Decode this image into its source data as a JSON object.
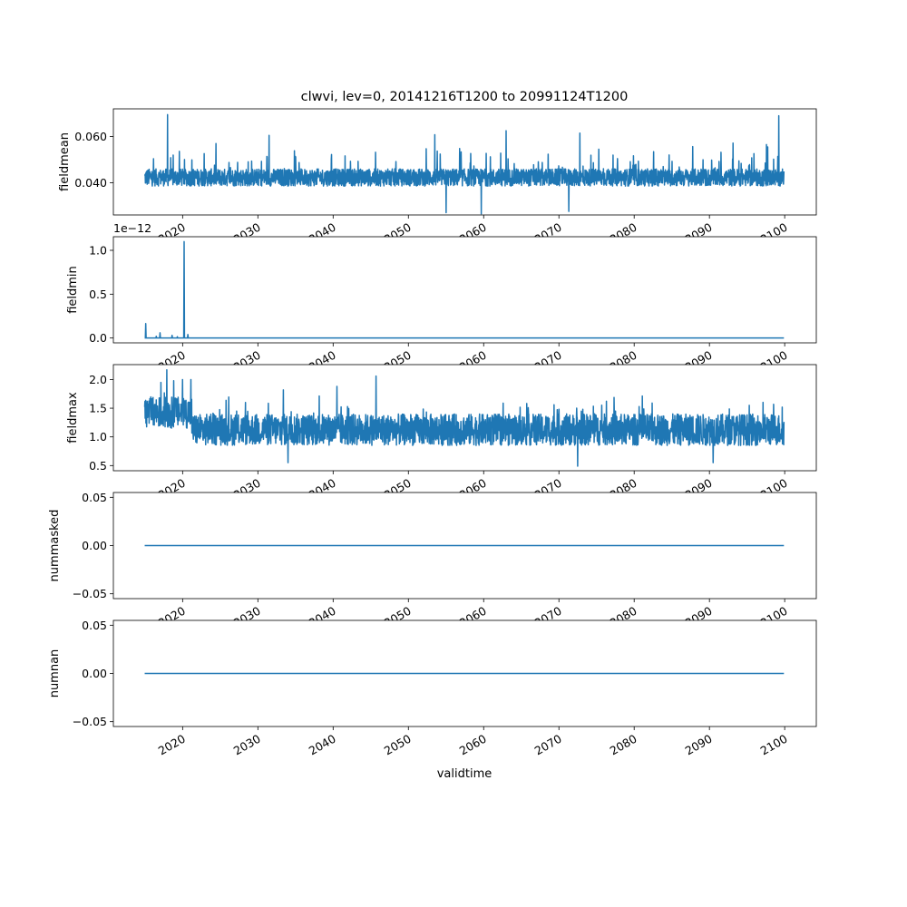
{
  "figure": {
    "title": "clwvi, lev=0, 20141216T1200 to 20991124T1200",
    "xlabel": "validtime"
  },
  "colors": {
    "line": "#1f77b4",
    "axes": "#000000"
  },
  "chart_data": [
    {
      "type": "line",
      "ylabel": "fieldmean",
      "xlim": [
        2010.8,
        2104.2
      ],
      "ylim": [
        0.026,
        0.072
      ],
      "yticks": [
        0.04,
        0.06
      ],
      "ytick_labels": [
        "0.040",
        "0.060"
      ],
      "offset_text": "",
      "x_start": 2014.96,
      "x_end": 2099.9,
      "series": {
        "base": 0.0385,
        "noise": 0.0075,
        "spike_chance": 0.045,
        "spike": 0.012,
        "min": 0.027,
        "max": 0.062
      },
      "peaks": [
        [
          2018.0,
          0.0695
        ],
        [
          2099.2,
          0.069
        ],
        [
          2063.0,
          0.0625
        ],
        [
          2072.8,
          0.0615
        ],
        [
          2031.5,
          0.0605
        ],
        [
          2053.5,
          0.0608
        ]
      ],
      "dips": [
        [
          2055.0,
          0.027
        ],
        [
          2059.7,
          0.0265
        ],
        [
          2071.3,
          0.0275
        ]
      ]
    },
    {
      "type": "line",
      "ylabel": "fieldmin",
      "xlim": [
        2010.8,
        2104.2
      ],
      "ylim": [
        -0.055,
        1.155
      ],
      "yticks": [
        0.0,
        0.5,
        1.0
      ],
      "ytick_labels": [
        "0.0",
        "0.5",
        "1.0"
      ],
      "offset_text": "1e−12",
      "x_start": 2014.96,
      "x_end": 2099.9,
      "baseline": 0.0,
      "spikes": [
        [
          2015.1,
          0.165
        ],
        [
          2016.5,
          0.02
        ],
        [
          2017.0,
          0.06
        ],
        [
          2018.6,
          0.03
        ],
        [
          2019.3,
          0.015
        ],
        [
          2020.2,
          1.1
        ],
        [
          2020.7,
          0.04
        ]
      ]
    },
    {
      "type": "line",
      "ylabel": "fieldmax",
      "xlim": [
        2010.8,
        2104.2
      ],
      "ylim": [
        0.41,
        2.26
      ],
      "yticks": [
        0.5,
        1.0,
        1.5,
        2.0
      ],
      "ytick_labels": [
        "0.5",
        "1.0",
        "1.5",
        "2.0"
      ],
      "offset_text": "",
      "x_start": 2014.96,
      "x_end": 2099.9,
      "series": {
        "base": 0.85,
        "noise": 0.55,
        "spike_chance": 0.04,
        "spike": 0.35,
        "min": 0.5,
        "max": 1.75
      },
      "early": {
        "until": 2021.2,
        "base": 1.15,
        "noise": 0.55
      },
      "peaks": [
        [
          2017.9,
          2.17
        ],
        [
          2017.1,
          1.95
        ],
        [
          2018.8,
          1.98
        ],
        [
          2021.1,
          2.0
        ],
        [
          2020.0,
          2.0
        ],
        [
          2033.4,
          1.82
        ],
        [
          2045.7,
          2.06
        ],
        [
          2040.5,
          1.88
        ]
      ],
      "dips": [
        [
          2072.5,
          0.49
        ],
        [
          2034.0,
          0.55
        ],
        [
          2090.5,
          0.55
        ]
      ]
    },
    {
      "type": "line",
      "ylabel": "nummasked",
      "xlim": [
        2010.8,
        2104.2
      ],
      "ylim": [
        -0.055,
        0.055
      ],
      "yticks": [
        -0.05,
        0.0,
        0.05
      ],
      "ytick_labels": [
        "−0.05",
        "0.00",
        "0.05"
      ],
      "offset_text": "",
      "x_start": 2014.96,
      "x_end": 2099.9,
      "baseline": 0.0
    },
    {
      "type": "line",
      "ylabel": "numnan",
      "xlim": [
        2010.8,
        2104.2
      ],
      "ylim": [
        -0.055,
        0.055
      ],
      "yticks": [
        -0.05,
        0.0,
        0.05
      ],
      "ytick_labels": [
        "−0.05",
        "0.00",
        "0.05"
      ],
      "offset_text": "",
      "x_start": 2014.96,
      "x_end": 2099.9,
      "baseline": 0.0
    }
  ],
  "xticks": [
    2020,
    2030,
    2040,
    2050,
    2060,
    2070,
    2080,
    2090,
    2100
  ],
  "xtick_labels": [
    "2020",
    "2030",
    "2040",
    "2050",
    "2060",
    "2070",
    "2080",
    "2090",
    "2100"
  ]
}
